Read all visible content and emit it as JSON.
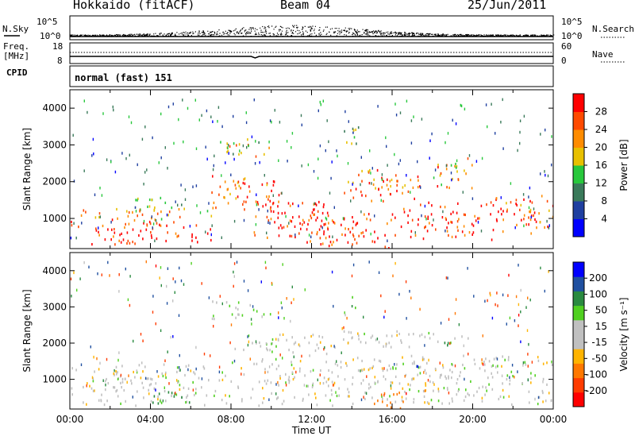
{
  "header": {
    "title": "Hokkaido (fitACF)",
    "beam": "Beam 04",
    "date": "25/Jun/2011"
  },
  "top_panels": {
    "nsky_label": "N.Sky",
    "nsearch_label": "N.Search",
    "nsky_ticks": [
      "10^5",
      "10^0"
    ],
    "freq_label_1": "Freq.",
    "freq_label_2": "[MHz]",
    "freq_ticks": [
      "18",
      "8"
    ],
    "nave_label": "Nave",
    "nave_ticks": [
      "60",
      "0"
    ],
    "cpid_label": "CPID",
    "cpid_value": "normal (fast) 151"
  },
  "colors": {
    "power_scale": [
      "#0000ff",
      "#1f3fa0",
      "#3a7a5a",
      "#28c83c",
      "#e8c000",
      "#ff8c00",
      "#ff4a00",
      "#ff0000"
    ],
    "velocity_scale": [
      "#ff0000",
      "#ff3c00",
      "#ff7800",
      "#ffb400",
      "#c0c0c0",
      "#c0c0c0",
      "#50d020",
      "#2a8a40",
      "#2050a0",
      "#0000ff"
    ],
    "gray": "#c0c0c0"
  },
  "chart_data": [
    {
      "type": "heatmap",
      "name": "power",
      "ylabel": "Slant Range [km]",
      "xlabel": "",
      "ylim": [
        180,
        4500
      ],
      "xlim_hours": [
        0,
        24
      ],
      "yticks": [
        "1000",
        "2000",
        "3000",
        "4000"
      ],
      "colorbar_label": "Power [dB]",
      "colorbar_ticks": [
        "4",
        "8",
        "12",
        "16",
        "20",
        "24",
        "28"
      ],
      "clim": [
        0,
        32
      ],
      "regions": [
        {
          "t": [
            0,
            7
          ],
          "r": [
            300,
            1000
          ],
          "v": 28
        },
        {
          "t": [
            0,
            7
          ],
          "r": [
            1000,
            1300
          ],
          "v": 20
        },
        {
          "t": [
            3,
            6
          ],
          "r": [
            1300,
            1600
          ],
          "v": 12
        },
        {
          "t": [
            7,
            11
          ],
          "r": [
            1200,
            2200
          ],
          "v": 26
        },
        {
          "t": [
            9,
            13
          ],
          "r": [
            500,
            1500
          ],
          "v": 30
        },
        {
          "t": [
            11,
            16.5
          ],
          "r": [
            200,
            1200
          ],
          "v": 28
        },
        {
          "t": [
            13.5,
            17.5
          ],
          "r": [
            1500,
            2400
          ],
          "v": 24
        },
        {
          "t": [
            16.5,
            21
          ],
          "r": [
            400,
            1500
          ],
          "v": 28
        },
        {
          "t": [
            21,
            24
          ],
          "r": [
            500,
            1700
          ],
          "v": 26
        },
        {
          "t": [
            7,
            10
          ],
          "r": [
            2700,
            3200
          ],
          "v": 18
        },
        {
          "t": [
            18,
            20
          ],
          "r": [
            1800,
            2700
          ],
          "v": 22
        },
        {
          "t": [
            13.5,
            14.5
          ],
          "r": [
            3000,
            3600
          ],
          "v": 12
        }
      ]
    },
    {
      "type": "heatmap",
      "name": "velocity",
      "ylabel": "Slant Range [km]",
      "xlabel": "Time UT",
      "ylim": [
        180,
        4500
      ],
      "xlim_hours": [
        0,
        24
      ],
      "yticks": [
        "1000",
        "2000",
        "3000",
        "4000"
      ],
      "xticks": [
        "00:00",
        "04:00",
        "08:00",
        "12:00",
        "16:00",
        "20:00",
        "00:00"
      ],
      "colorbar_label": "Velocity [m s⁻¹]",
      "colorbar_ticks": [
        "-200",
        "-100",
        "-50",
        "-15",
        "15",
        "50",
        "100",
        "200"
      ],
      "clim": [
        -250,
        250
      ],
      "regions": [
        {
          "t": [
            0,
            8
          ],
          "r": [
            300,
            1500
          ],
          "v": 0
        },
        {
          "t": [
            8,
            24
          ],
          "r": [
            300,
            1700
          ],
          "v": 0
        },
        {
          "t": [
            8,
            13
          ],
          "r": [
            1700,
            2300
          ],
          "v": 0
        },
        {
          "t": [
            13,
            20
          ],
          "r": [
            1900,
            2400
          ],
          "v": 0
        },
        {
          "t": [
            7,
            10
          ],
          "r": [
            2700,
            3200
          ],
          "v": 5
        },
        {
          "t": [
            15,
            17
          ],
          "r": [
            200,
            700
          ],
          "v": -70
        },
        {
          "t": [
            4,
            6
          ],
          "r": [
            300,
            700
          ],
          "v": 60
        },
        {
          "t": [
            18,
            19
          ],
          "r": [
            1900,
            2100
          ],
          "v": 60
        },
        {
          "t": [
            13.5,
            14.5
          ],
          "r": [
            3000,
            3400
          ],
          "v": 60
        }
      ]
    }
  ]
}
